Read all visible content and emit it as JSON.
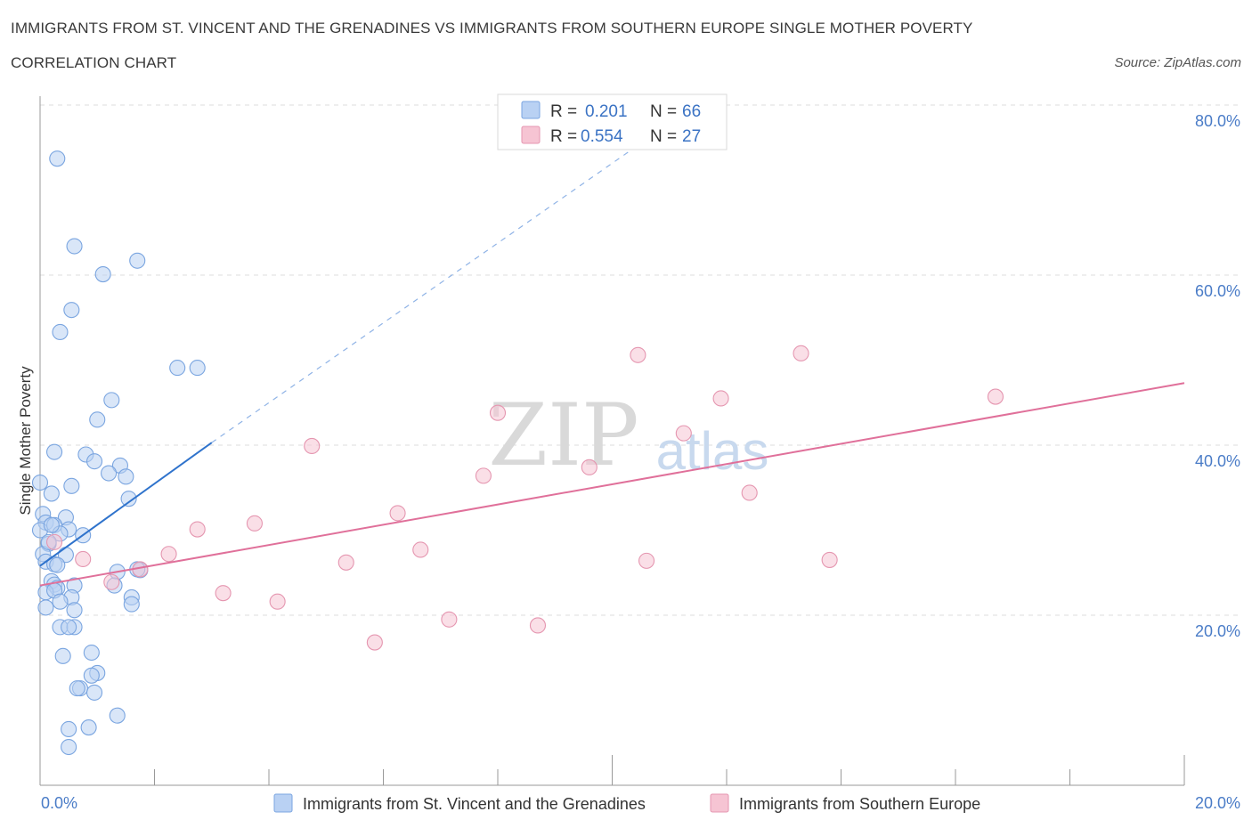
{
  "title_line1": "IMMIGRANTS FROM ST. VINCENT AND THE GRENADINES VS IMMIGRANTS FROM SOUTHERN EUROPE SINGLE MOTHER POVERTY",
  "title_line2": "CORRELATION CHART",
  "source": "Source: ZipAtlas.com",
  "watermark": {
    "zip": "ZIP",
    "atlas": "atlas"
  },
  "colors": {
    "blue_fill": "#b9d1f3",
    "blue_stroke": "#7aa5e0",
    "blue_line": "#2f73cc",
    "pink_fill": "#f6c4d3",
    "pink_stroke": "#e596b0",
    "pink_line": "#e0709a",
    "tick_label": "#4a7cc7",
    "grid": "#dddddd"
  },
  "legend": {
    "rows": [
      {
        "r_label": "R =",
        "r_value": "0.201",
        "n_label": "N =",
        "n_value": "66"
      },
      {
        "r_label": "R =",
        "r_value": "0.554",
        "n_label": "N =",
        "n_value": "27"
      }
    ]
  },
  "chart_data": {
    "type": "scatter",
    "xlabel": "",
    "ylabel": "Single Mother Poverty",
    "xlim": [
      0,
      20
    ],
    "ylim": [
      0,
      80
    ],
    "x_tick_labels": [
      "0.0%",
      "20.0%"
    ],
    "y_ticks": [
      20,
      40,
      60,
      80
    ],
    "y_tick_labels": [
      "20.0%",
      "40.0%",
      "60.0%",
      "80.0%"
    ],
    "grid": "horizontal dashed",
    "legend_position": "top-center",
    "series": [
      {
        "name": "Immigrants from St. Vincent and the Grenadines",
        "color": "#b9d1f3",
        "trend": {
          "x": [
            0,
            3.0
          ],
          "y": [
            25.8,
            40.3
          ],
          "extended_to": [
            10.5,
            75.5
          ]
        },
        "points": [
          [
            0.3,
            73.7
          ],
          [
            0.6,
            63.4
          ],
          [
            1.1,
            60.1
          ],
          [
            1.7,
            61.7
          ],
          [
            0.55,
            55.9
          ],
          [
            0.35,
            53.3
          ],
          [
            2.4,
            49.1
          ],
          [
            2.75,
            49.1
          ],
          [
            1.25,
            45.3
          ],
          [
            1.0,
            43.0
          ],
          [
            0.25,
            39.2
          ],
          [
            0.8,
            38.9
          ],
          [
            0.95,
            38.1
          ],
          [
            1.4,
            37.6
          ],
          [
            1.2,
            36.7
          ],
          [
            1.5,
            36.3
          ],
          [
            0.0,
            35.6
          ],
          [
            0.55,
            35.2
          ],
          [
            0.2,
            34.3
          ],
          [
            1.55,
            33.7
          ],
          [
            0.05,
            31.9
          ],
          [
            0.45,
            31.5
          ],
          [
            0.1,
            30.9
          ],
          [
            0.25,
            30.6
          ],
          [
            0.0,
            30.0
          ],
          [
            0.5,
            30.1
          ],
          [
            0.35,
            29.6
          ],
          [
            0.75,
            29.4
          ],
          [
            0.15,
            28.4
          ],
          [
            0.05,
            27.2
          ],
          [
            0.45,
            27.1
          ],
          [
            0.1,
            26.3
          ],
          [
            0.25,
            26.0
          ],
          [
            0.3,
            25.9
          ],
          [
            1.35,
            25.1
          ],
          [
            1.75,
            25.3
          ],
          [
            0.2,
            24.0
          ],
          [
            0.25,
            23.6
          ],
          [
            0.6,
            23.5
          ],
          [
            0.3,
            23.2
          ],
          [
            1.3,
            23.5
          ],
          [
            0.1,
            22.7
          ],
          [
            0.25,
            22.9
          ],
          [
            0.55,
            22.1
          ],
          [
            0.35,
            21.6
          ],
          [
            1.6,
            22.1
          ],
          [
            1.6,
            21.3
          ],
          [
            0.1,
            20.9
          ],
          [
            0.6,
            20.6
          ],
          [
            0.35,
            18.6
          ],
          [
            0.6,
            18.6
          ],
          [
            0.5,
            18.6
          ],
          [
            0.4,
            15.2
          ],
          [
            0.9,
            15.6
          ],
          [
            1.0,
            13.2
          ],
          [
            0.9,
            12.9
          ],
          [
            0.7,
            11.4
          ],
          [
            0.65,
            11.4
          ],
          [
            0.95,
            10.9
          ],
          [
            1.35,
            8.2
          ],
          [
            0.85,
            6.8
          ],
          [
            0.5,
            6.6
          ],
          [
            0.5,
            4.5
          ],
          [
            0.2,
            30.6
          ],
          [
            0.15,
            28.6
          ],
          [
            1.7,
            25.4
          ]
        ]
      },
      {
        "name": "Immigrants from Southern Europe",
        "color": "#f6c4d3",
        "trend": {
          "x": [
            0,
            20
          ],
          "y": [
            23.5,
            47.3
          ]
        },
        "points": [
          [
            0.25,
            28.6
          ],
          [
            0.75,
            26.6
          ],
          [
            1.75,
            25.4
          ],
          [
            1.25,
            23.9
          ],
          [
            2.25,
            27.2
          ],
          [
            2.75,
            30.1
          ],
          [
            3.2,
            22.6
          ],
          [
            3.75,
            30.8
          ],
          [
            4.15,
            21.6
          ],
          [
            4.75,
            39.9
          ],
          [
            5.35,
            26.2
          ],
          [
            5.85,
            16.8
          ],
          [
            6.25,
            32.0
          ],
          [
            6.65,
            27.7
          ],
          [
            7.15,
            19.5
          ],
          [
            7.75,
            36.4
          ],
          [
            8.0,
            43.8
          ],
          [
            8.7,
            18.8
          ],
          [
            9.6,
            37.4
          ],
          [
            10.45,
            50.6
          ],
          [
            10.6,
            26.4
          ],
          [
            11.25,
            41.4
          ],
          [
            11.9,
            45.5
          ],
          [
            12.4,
            34.4
          ],
          [
            13.3,
            50.8
          ],
          [
            13.8,
            26.5
          ],
          [
            16.7,
            45.7
          ]
        ]
      }
    ]
  },
  "bottom_legend": {
    "items": [
      {
        "label": "Immigrants from St. Vincent and the Grenadines"
      },
      {
        "label": "Immigrants from Southern Europe"
      }
    ]
  }
}
